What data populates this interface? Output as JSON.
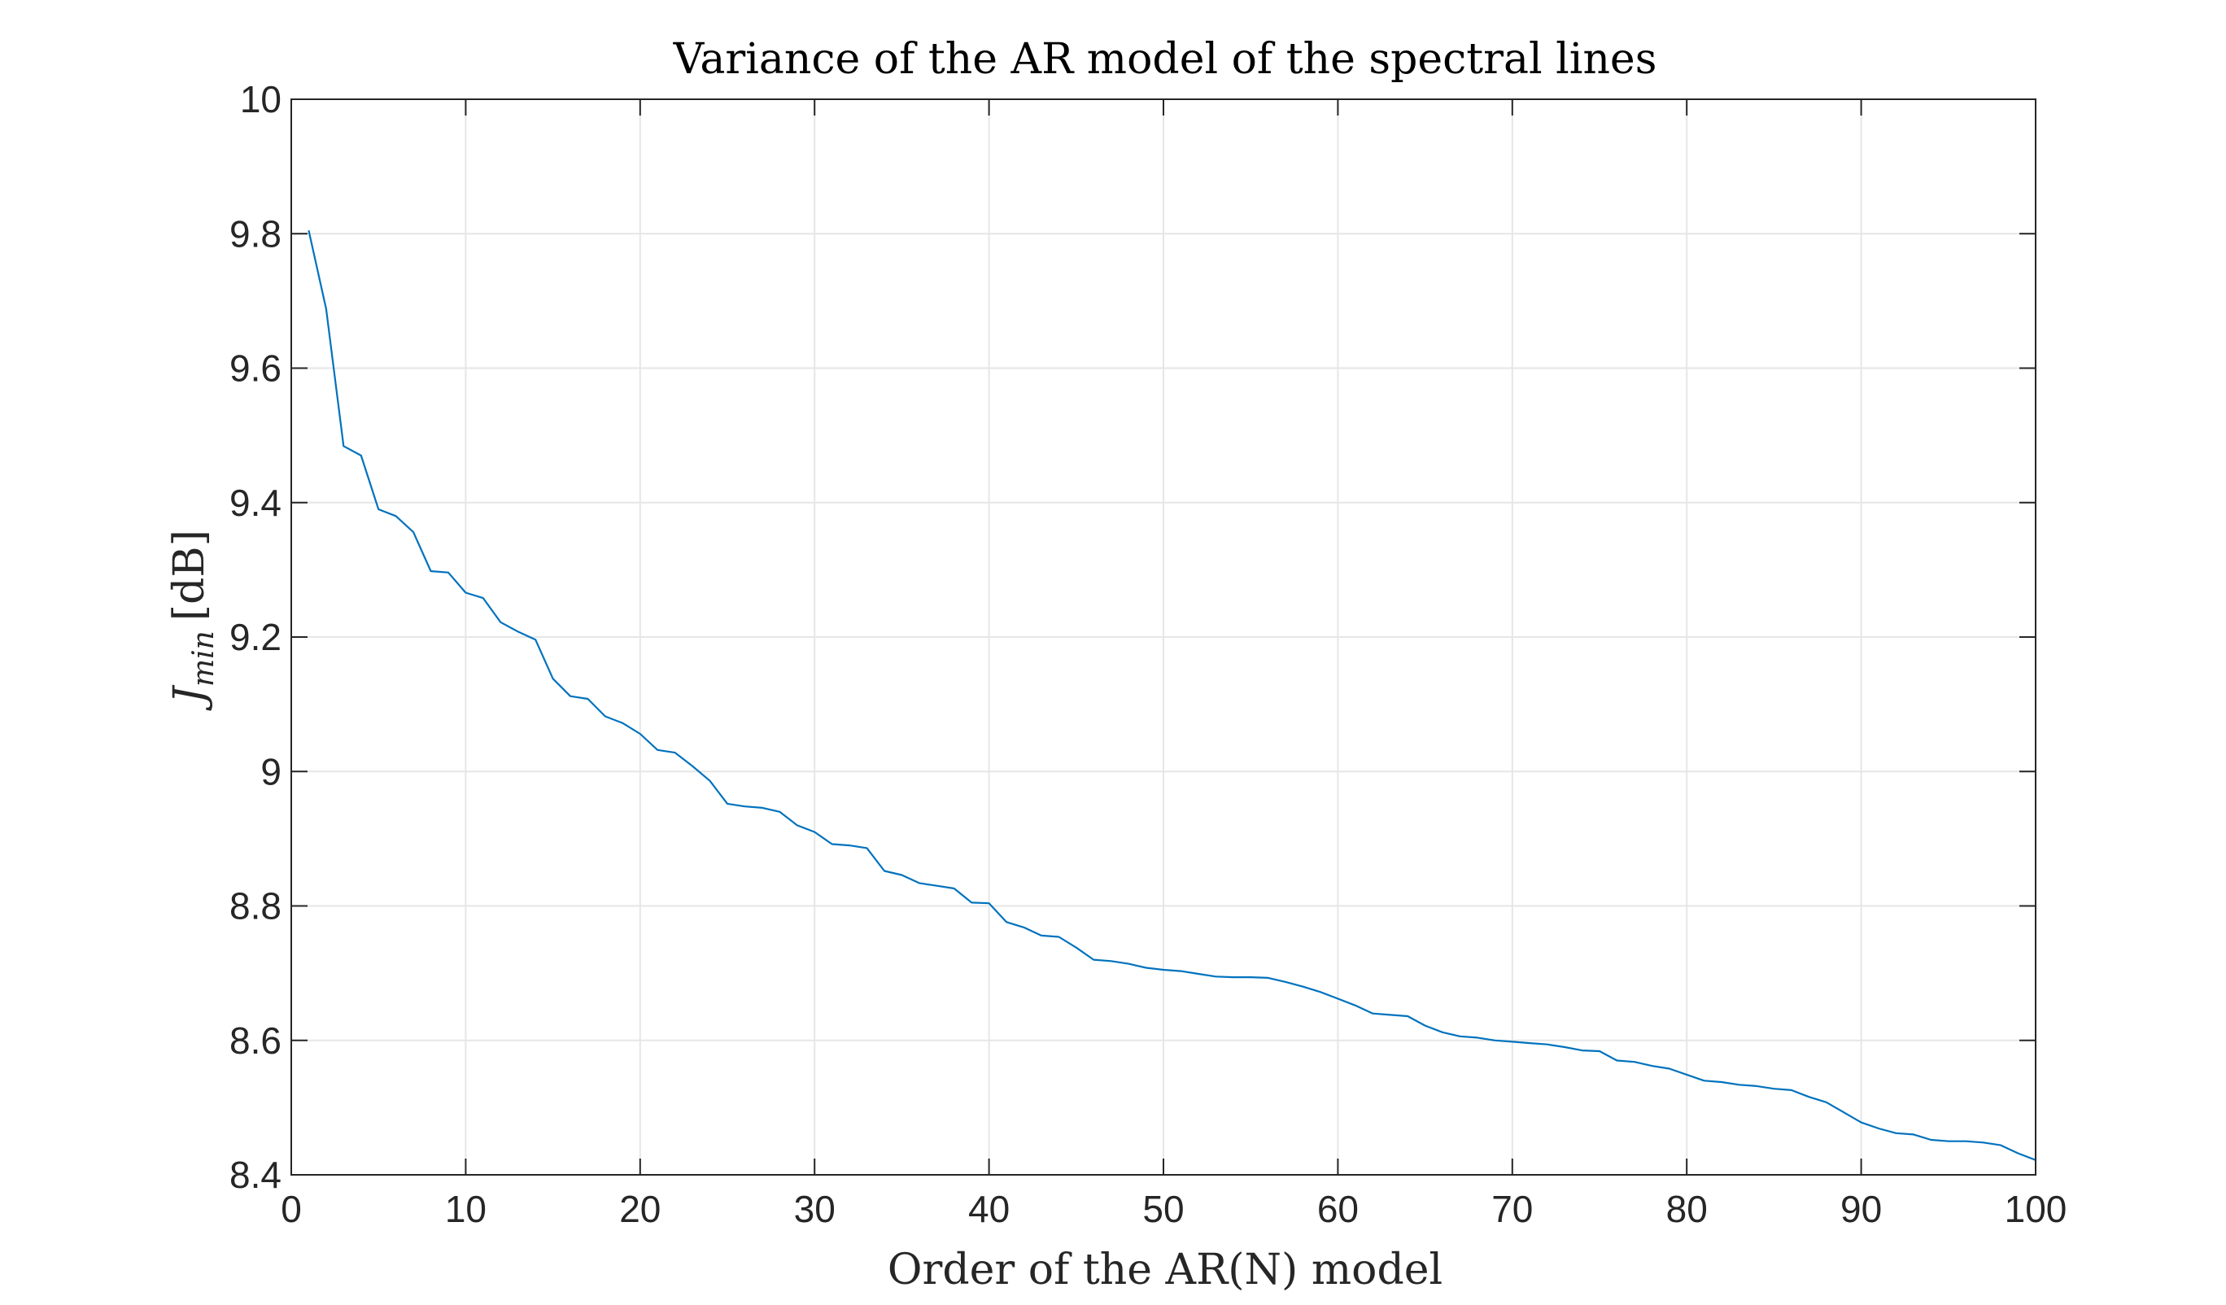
{
  "chart_data": {
    "type": "line",
    "title": "Variance of the AR model of the spectral lines",
    "xlabel": "Order of the AR(N) model",
    "ylabel": {
      "symbol": "J",
      "subscript": "min",
      "unit": "[dB]"
    },
    "xlim": [
      0,
      100
    ],
    "ylim": [
      8.4,
      10
    ],
    "xticks": [
      "0",
      "10",
      "20",
      "30",
      "40",
      "50",
      "60",
      "70",
      "80",
      "90",
      "100"
    ],
    "yticks": [
      "8.4",
      "8.6",
      "8.8",
      "9",
      "9.2",
      "9.4",
      "9.6",
      "9.8",
      "10"
    ],
    "grid": true,
    "series_color": "#0072bd",
    "x": [
      1,
      2,
      3,
      4,
      5,
      6,
      7,
      8,
      9,
      10,
      11,
      12,
      13,
      14,
      15,
      16,
      17,
      18,
      19,
      20,
      21,
      22,
      23,
      24,
      25,
      26,
      27,
      28,
      29,
      30,
      31,
      32,
      33,
      34,
      35,
      36,
      37,
      38,
      39,
      40,
      41,
      42,
      43,
      44,
      45,
      46,
      47,
      48,
      49,
      50,
      51,
      52,
      53,
      54,
      55,
      56,
      57,
      58,
      59,
      60,
      61,
      62,
      63,
      64,
      65,
      66,
      67,
      68,
      69,
      70,
      71,
      72,
      73,
      74,
      75,
      76,
      77,
      78,
      79,
      80,
      81,
      82,
      83,
      84,
      85,
      86,
      87,
      88,
      89,
      90,
      91,
      92,
      93,
      94,
      95,
      96,
      97,
      98,
      99,
      100
    ],
    "y": [
      9.805,
      9.688,
      9.484,
      9.47,
      9.39,
      9.38,
      9.356,
      9.298,
      9.296,
      9.266,
      9.258,
      9.222,
      9.208,
      9.196,
      9.138,
      9.112,
      9.108,
      9.082,
      9.072,
      9.056,
      9.032,
      9.028,
      9.008,
      8.986,
      8.952,
      8.948,
      8.946,
      8.94,
      8.92,
      8.91,
      8.892,
      8.89,
      8.886,
      8.852,
      8.846,
      8.834,
      8.83,
      8.826,
      8.805,
      8.804,
      8.776,
      8.768,
      8.756,
      8.754,
      8.738,
      8.72,
      8.718,
      8.714,
      8.708,
      8.705,
      8.703,
      8.699,
      8.695,
      8.694,
      8.694,
      8.693,
      8.687,
      8.68,
      8.672,
      8.662,
      8.652,
      8.64,
      8.638,
      8.636,
      8.622,
      8.612,
      8.606,
      8.604,
      8.6,
      8.598,
      8.596,
      8.594,
      8.59,
      8.585,
      8.584,
      8.57,
      8.568,
      8.562,
      8.558,
      8.549,
      8.54,
      8.538,
      8.534,
      8.532,
      8.528,
      8.526,
      8.516,
      8.508,
      8.493,
      8.478,
      8.469,
      8.462,
      8.46,
      8.452,
      8.45,
      8.45,
      8.448,
      8.444,
      8.432,
      8.422
    ]
  }
}
